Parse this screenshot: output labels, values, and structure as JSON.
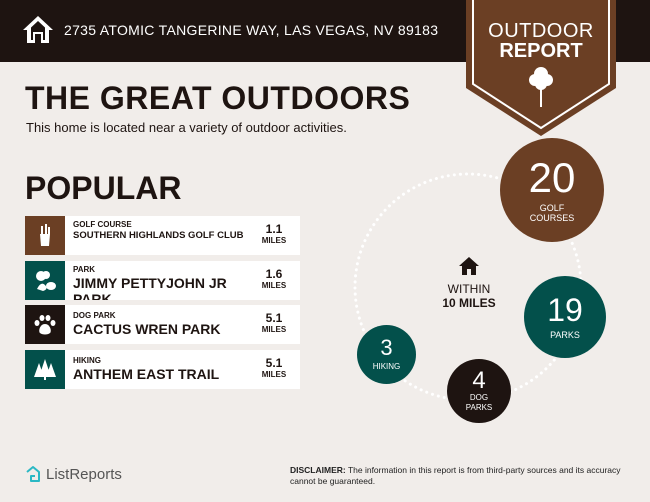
{
  "header": {
    "address": "2735 ATOMIC TANGERINE WAY, LAS VEGAS, NV 89183",
    "icon": "home-icon"
  },
  "badge": {
    "line1": "OUTDOOR",
    "line2": "REPORT",
    "icon": "tree-icon"
  },
  "title": "THE GREAT OUTDOORS",
  "subtitle": "This home is located near a variety of outdoor activities.",
  "popular": {
    "heading": "POPULAR",
    "items": [
      {
        "category": "GOLF COURSE",
        "name": "SOUTHERN HIGHLANDS GOLF CLUB",
        "distance": "1.1",
        "unit": "MILES",
        "icon": "golf-bag-icon",
        "color": "#6b3f24"
      },
      {
        "category": "PARK",
        "name": "JIMMY PETTYJOHN JR PARK",
        "distance": "1.6",
        "unit": "MILES",
        "icon": "park-icon",
        "color": "#03504b"
      },
      {
        "category": "DOG PARK",
        "name": "CACTUS WREN PARK",
        "distance": "5.1",
        "unit": "MILES",
        "icon": "paw-icon",
        "color": "#1e1411"
      },
      {
        "category": "HIKING",
        "name": "ANTHEM EAST TRAIL",
        "distance": "5.1",
        "unit": "MILES",
        "icon": "pine-trees-icon",
        "color": "#03504b"
      }
    ]
  },
  "summary": {
    "within1": "WITHIN",
    "within2": "10 MILES",
    "golf": {
      "count": "20",
      "l1": "GOLF",
      "l2": "COURSES",
      "color": "#6b3f24"
    },
    "parks": {
      "count": "19",
      "l1": "PARKS",
      "color": "#03504b"
    },
    "dog": {
      "count": "4",
      "l1": "DOG",
      "l2": "PARKS",
      "color": "#1e1411"
    },
    "hiking": {
      "count": "3",
      "l1": "HIKING",
      "color": "#03504b"
    }
  },
  "footer": {
    "brand": "ListReports",
    "disclaimer_label": "DISCLAIMER:",
    "disclaimer": " The information in this report is from third-party sources and its accuracy cannot be guaranteed."
  }
}
